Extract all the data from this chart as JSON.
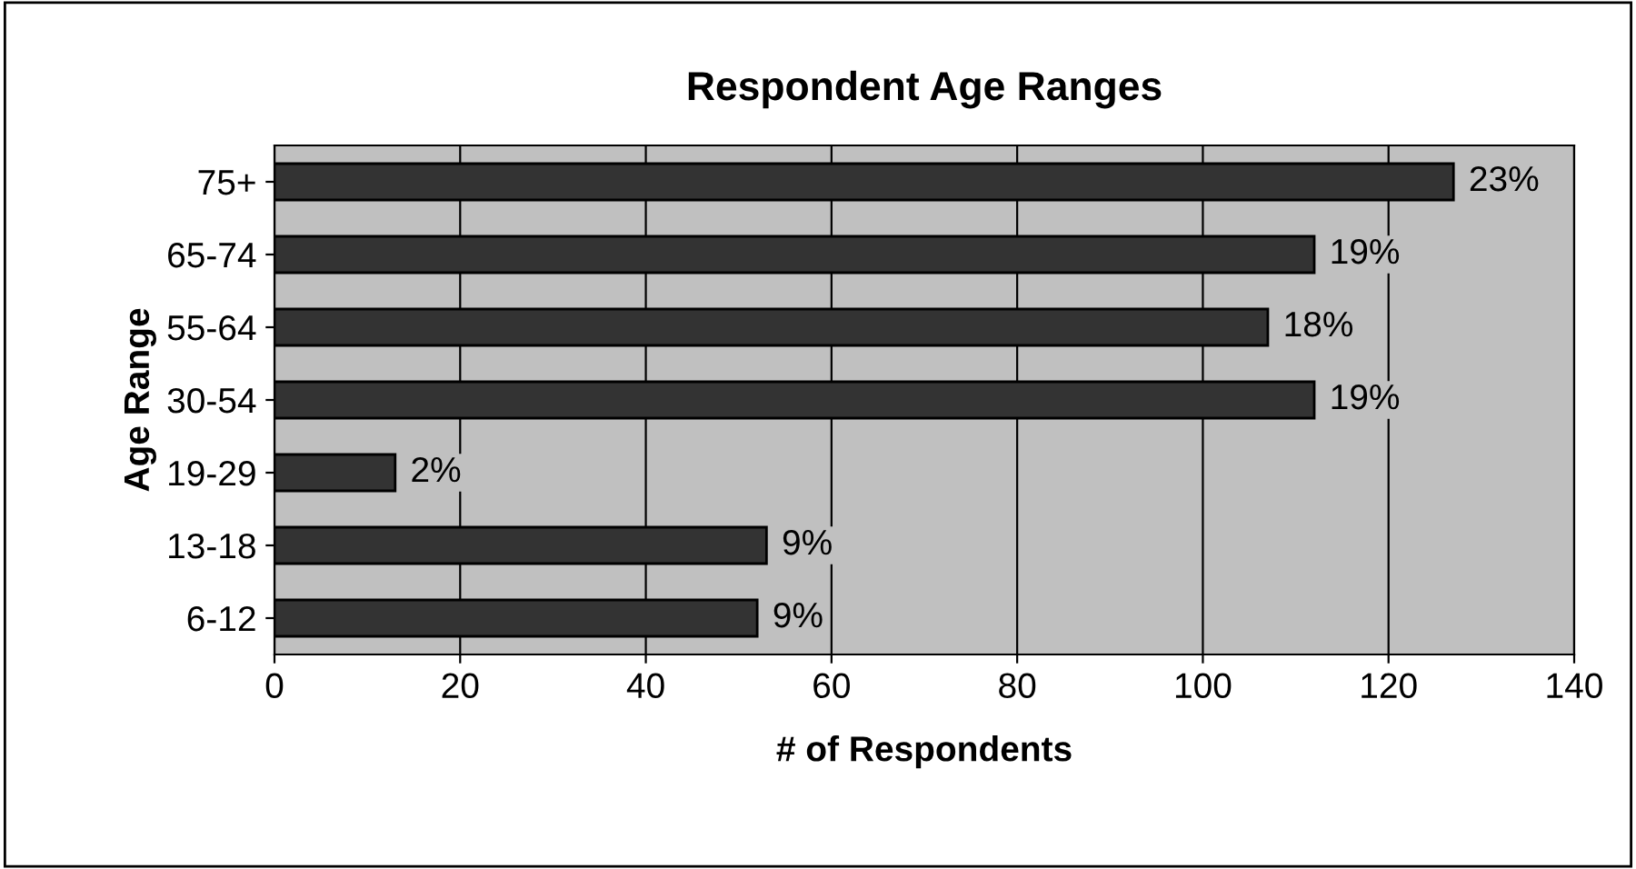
{
  "chart_data": {
    "type": "bar",
    "orientation": "horizontal",
    "title": "Respondent Age Ranges",
    "xlabel": "# of Respondents",
    "ylabel": "Age Range",
    "categories": [
      "75+",
      "65-74",
      "55-64",
      "30-54",
      "19-29",
      "13-18",
      "6-12"
    ],
    "values": [
      127,
      112,
      107,
      112,
      13,
      53,
      52
    ],
    "annotations": [
      {
        "text": "23%",
        "x": 127,
        "y": "75+"
      },
      {
        "text": "19%",
        "x": 112,
        "y": "65-74"
      },
      {
        "text": "18%",
        "x": 107,
        "y": "55-64"
      },
      {
        "text": "19%",
        "x": 112,
        "y": "30-54"
      },
      {
        "text": "2%",
        "x": 13,
        "y": "19-29"
      },
      {
        "text": "9%",
        "x": 53,
        "y": "13-18"
      },
      {
        "text": "9%",
        "x": 52,
        "y": "6-12"
      }
    ],
    "color": "#333333",
    "xlim": [
      0,
      140
    ],
    "xticks": [
      0,
      20,
      40,
      60,
      80,
      100,
      120,
      140
    ],
    "grid": "x",
    "legend": false
  }
}
